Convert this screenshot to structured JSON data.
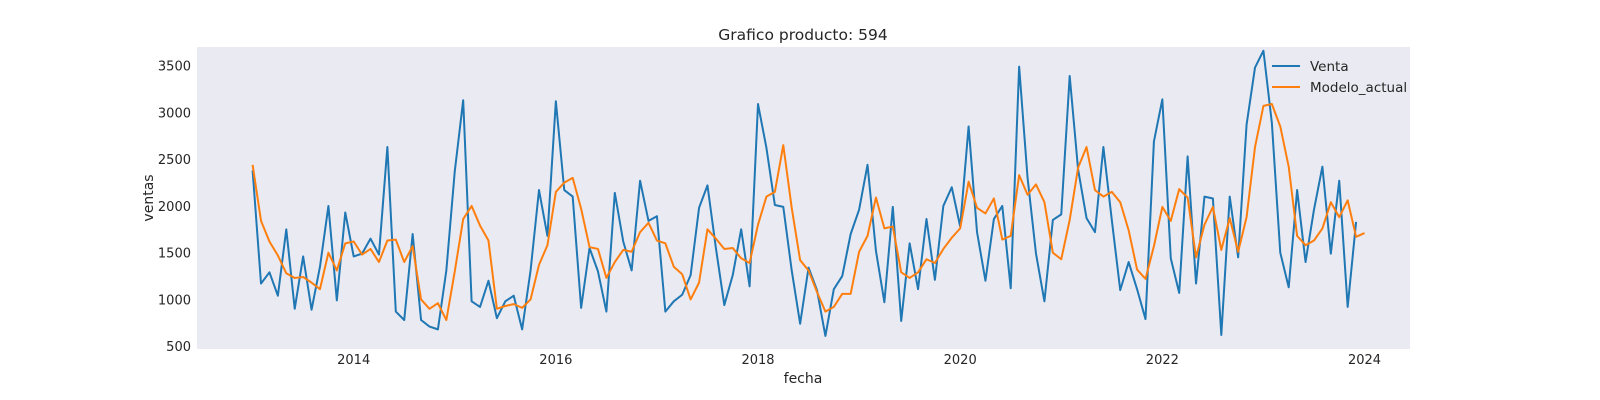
{
  "chart_data": {
    "type": "line",
    "title": "Grafico producto: 594",
    "xlabel": "fecha",
    "ylabel": "ventas",
    "xlim": [
      2012.45,
      2024.45
    ],
    "ylim": [
      470,
      3700
    ],
    "xticks": [
      2014,
      2016,
      2018,
      2020,
      2022,
      2024
    ],
    "yticks": [
      500,
      1000,
      1500,
      2000,
      2500,
      3000,
      3500
    ],
    "grid": false,
    "legend_position": "top-right",
    "background": "#eaeaf2",
    "x_start_year": 2013,
    "x_step_months": 1,
    "series": [
      {
        "name": "Venta",
        "color": "#1f77b4",
        "values": [
          2380,
          1170,
          1290,
          1040,
          1750,
          900,
          1460,
          890,
          1350,
          2000,
          990,
          1930,
          1460,
          1490,
          1650,
          1480,
          2630,
          870,
          780,
          1700,
          780,
          710,
          680,
          1310,
          2370,
          3130,
          980,
          920,
          1200,
          800,
          980,
          1040,
          680,
          1310,
          2170,
          1680,
          3120,
          2170,
          2100,
          910,
          1550,
          1300,
          870,
          2140,
          1620,
          1310,
          2270,
          1840,
          1890,
          870,
          980,
          1050,
          1260,
          1980,
          2220,
          1550,
          940,
          1260,
          1750,
          1140,
          3090,
          2620,
          2010,
          1990,
          1310,
          740,
          1340,
          1100,
          610,
          1110,
          1250,
          1700,
          1960,
          2440,
          1520,
          970,
          1990,
          770,
          1600,
          1110,
          1860,
          1210,
          2000,
          2200,
          1780,
          2850,
          1720,
          1200,
          1860,
          2000,
          1120,
          3490,
          2300,
          1490,
          980,
          1850,
          1910,
          3390,
          2390,
          1870,
          1720,
          2630,
          1850,
          1100,
          1400,
          1110,
          790,
          2690,
          3140,
          1440,
          1070,
          2530,
          1170,
          2100,
          2080,
          620,
          2100,
          1450,
          2870,
          3480,
          3660,
          2890,
          1500,
          1130,
          2170,
          1400,
          1960,
          2420,
          1490,
          2270,
          920,
          1830
        ]
      },
      {
        "name": "Modelo_actual",
        "color": "#ff7f0e",
        "values": [
          2440,
          1840,
          1620,
          1470,
          1280,
          1230,
          1240,
          1180,
          1110,
          1500,
          1310,
          1600,
          1620,
          1480,
          1540,
          1400,
          1630,
          1640,
          1400,
          1570,
          1000,
          900,
          960,
          780,
          1300,
          1860,
          2000,
          1790,
          1630,
          900,
          930,
          950,
          910,
          1000,
          1370,
          1580,
          2150,
          2250,
          2300,
          1970,
          1560,
          1540,
          1230,
          1400,
          1530,
          1510,
          1720,
          1820,
          1630,
          1600,
          1350,
          1270,
          1000,
          1180,
          1750,
          1650,
          1540,
          1550,
          1440,
          1390,
          1800,
          2100,
          2150,
          2650,
          1980,
          1420,
          1310,
          1080,
          870,
          920,
          1060,
          1060,
          1510,
          1680,
          2090,
          1760,
          1780,
          1290,
          1230,
          1290,
          1430,
          1390,
          1540,
          1660,
          1760,
          2260,
          1980,
          1920,
          2080,
          1640,
          1680,
          2330,
          2120,
          2230,
          2040,
          1500,
          1430,
          1850,
          2410,
          2630,
          2170,
          2100,
          2150,
          2040,
          1740,
          1320,
          1220,
          1570,
          1990,
          1840,
          2180,
          2090,
          1450,
          1800,
          1990,
          1530,
          1870,
          1510,
          1880,
          2630,
          3070,
          3090,
          2850,
          2420,
          1680,
          1580,
          1630,
          1760,
          2040,
          1880,
          2060,
          1670,
          1710
        ]
      }
    ]
  }
}
